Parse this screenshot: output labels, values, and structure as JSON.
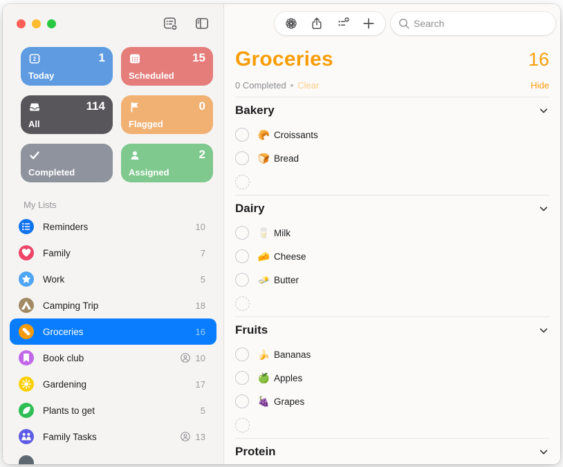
{
  "colors": {
    "accent_orange": "#f99d07",
    "clear_disabled_orange": "#fbcf8b",
    "selection_blue": "#0a7dff",
    "sidebar_bg": "#f5f4f2",
    "main_bg": "#fbfaf9"
  },
  "sidebar": {
    "section_label": "My Lists",
    "smart_lists": [
      {
        "id": "today",
        "label": "Today",
        "count": "1",
        "color": "#5f9be1",
        "icon": "calendar-today"
      },
      {
        "id": "scheduled",
        "label": "Scheduled",
        "count": "15",
        "color": "#e57d7a",
        "icon": "calendar-grid"
      },
      {
        "id": "all",
        "label": "All",
        "count": "114",
        "color": "#58565a",
        "icon": "tray"
      },
      {
        "id": "flagged",
        "label": "Flagged",
        "count": "0",
        "color": "#f1b173",
        "icon": "flag"
      },
      {
        "id": "completed",
        "label": "Completed",
        "count": "",
        "color": "#8e939e",
        "icon": "checkmark"
      },
      {
        "id": "assigned",
        "label": "Assigned",
        "count": "2",
        "color": "#7fc88e",
        "icon": "person"
      }
    ],
    "lists": [
      {
        "label": "Reminders",
        "count": "10",
        "color": "#1273f0",
        "icon": "list",
        "shared": false,
        "selected": false
      },
      {
        "label": "Family",
        "count": "7",
        "color": "#ee4468",
        "icon": "heart",
        "shared": false,
        "selected": false
      },
      {
        "label": "Work",
        "count": "5",
        "color": "#4da5f4",
        "icon": "star",
        "shared": false,
        "selected": false
      },
      {
        "label": "Camping Trip",
        "count": "18",
        "color": "#a28b64",
        "icon": "tent",
        "shared": false,
        "selected": false
      },
      {
        "label": "Groceries",
        "count": "16",
        "color": "#f69b0c",
        "icon": "carrot",
        "shared": false,
        "selected": true
      },
      {
        "label": "Book club",
        "count": "10",
        "color": "#c168e8",
        "icon": "bookmark",
        "shared": true,
        "selected": false
      },
      {
        "label": "Gardening",
        "count": "17",
        "color": "#fdd00a",
        "icon": "sun",
        "shared": false,
        "selected": false
      },
      {
        "label": "Plants to get",
        "count": "5",
        "color": "#2dbf55",
        "icon": "leaf",
        "shared": false,
        "selected": false
      },
      {
        "label": "Family Tasks",
        "count": "13",
        "color": "#5e5ce6",
        "icon": "people",
        "shared": true,
        "selected": false
      },
      {
        "label": "",
        "count": "",
        "color": "#5e6870",
        "icon": "circle",
        "shared": false,
        "selected": false
      }
    ]
  },
  "toolbar": {
    "search_placeholder": "Search"
  },
  "main": {
    "title": "Groceries",
    "count": "16",
    "status": {
      "completed": "0 Completed",
      "separator": "•",
      "clear": "Clear",
      "hide": "Hide"
    },
    "sections": [
      {
        "name": "Bakery",
        "items": [
          {
            "emoji": "🥐",
            "label": "Croissants"
          },
          {
            "emoji": "🍞",
            "label": "Bread"
          }
        ]
      },
      {
        "name": "Dairy",
        "items": [
          {
            "emoji": "🥛",
            "label": "Milk"
          },
          {
            "emoji": "🧀",
            "label": "Cheese"
          },
          {
            "emoji": "🧈",
            "label": "Butter"
          }
        ]
      },
      {
        "name": "Fruits",
        "items": [
          {
            "emoji": "🍌",
            "label": "Bananas"
          },
          {
            "emoji": "🍏",
            "label": "Apples"
          },
          {
            "emoji": "🍇",
            "label": "Grapes"
          }
        ]
      },
      {
        "name": "Protein",
        "items": []
      }
    ]
  }
}
